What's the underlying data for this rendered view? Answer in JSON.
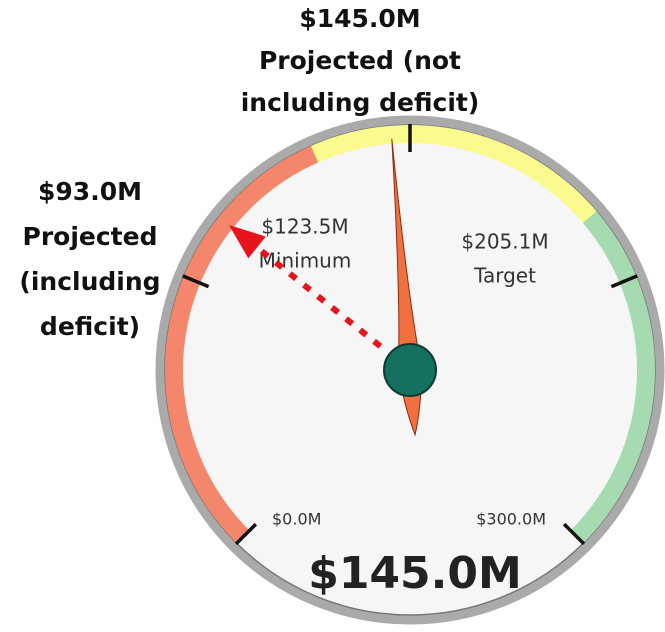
{
  "chart_data": {
    "type": "gauge",
    "value": 145.0,
    "value_label": "$145.0M",
    "ylim": [
      0,
      300
    ],
    "yticks": [
      {
        "value": 0,
        "label": "$0.0M"
      },
      {
        "value": 300,
        "label": "$300.0M"
      }
    ],
    "minor_ticks": [
      75,
      150,
      225
    ],
    "thresholds": [
      {
        "value": 123.5,
        "label": "$123.5M",
        "name": "Minimum"
      },
      {
        "value": 205.1,
        "label": "$205.1M",
        "name": "Target"
      }
    ],
    "band_colors": [
      "#f4876b",
      "#fbfa8e",
      "#a6dbb1"
    ],
    "needle_color": "#f2703f",
    "hub_color": "#16705f",
    "annotations": [
      {
        "value": 145.0,
        "label": "$145.0M",
        "text": [
          "Projected (not",
          "including deficit)"
        ]
      },
      {
        "value": 93.0,
        "label": "$93.0M",
        "text": [
          "Projected",
          "(including",
          "deficit)"
        ],
        "color": "#e8141c"
      }
    ]
  }
}
